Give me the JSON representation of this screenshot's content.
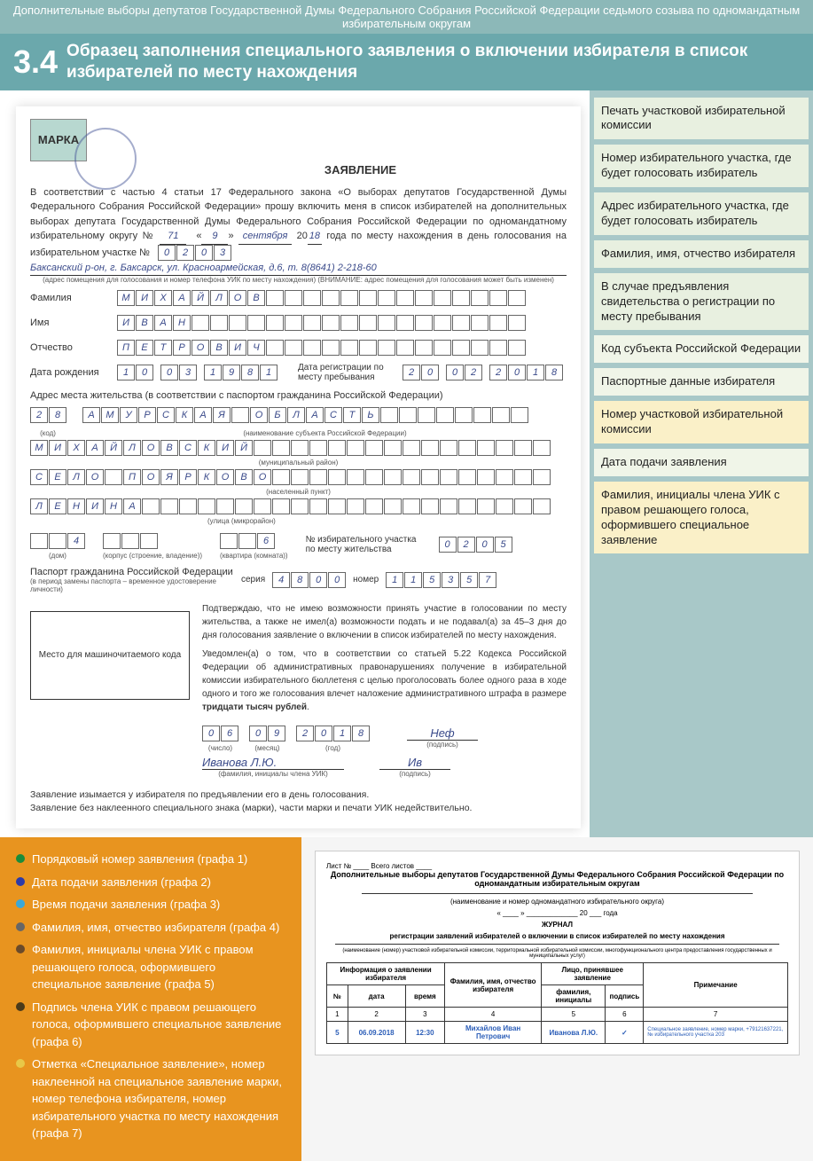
{
  "header": {
    "top": "Дополнительные выборы депутатов Государственной Думы Федерального Собрания Российской Федерации седьмого созыва по одномандатным избирательным округам",
    "num": "3.4",
    "title": "Образец заполнения специального заявления о включении избирателя в список избирателей по месту нахождения"
  },
  "callouts": [
    "Печать участковой избирательной комиссии",
    "Номер избирательного участка, где будет голосовать избиратель",
    "Адрес избирательного участка, где будет голосовать избиратель",
    "Фамилия, имя, отчество избирателя",
    "В случае предъявления свидетельства о регистрации по месту пребывания",
    "Код субъекта Российской Федерации",
    "Паспортные данные избирателя",
    "Номер участковой избирательной комиссии",
    "Дата подачи заявления",
    "Фамилия, инициалы члена УИК с правом решающего голоса, оформившего специальное заявление"
  ],
  "calloutStyles": [
    "",
    "",
    "",
    "",
    "",
    "pale",
    "pale",
    "yellow",
    "pale",
    "yellow"
  ],
  "form": {
    "marka": "МАРКА",
    "title": "ЗАЯВЛЕНИЕ",
    "intro": "В соответствии с частью 4 статьи 17 Федерального закона «О выборах депутатов Государственной Думы Федерального Собрания Российской Федерации» прошу включить меня в список избирателей на дополнительных выборах депутата Государственной Думы Федерального Собрания Российской Федерации по одномандатному избирательному округу №",
    "okrug_no": "71",
    "date_day": "9",
    "date_month": "сентября",
    "date_year": "18",
    "intro2": "года по месту нахождения в день голосования на избирательном участке №",
    "uik_cells": [
      "0",
      "2",
      "0",
      "3"
    ],
    "address_line": "Баксанский р-он, г. Баксарск, ул. Красноармейская, д.6, т. 8(8641) 2-218-60",
    "address_note": "(адрес помещения для голосования и номер телефона УИК по месту нахождения) (ВНИМАНИЕ: адрес помещения для голосования может быть изменен)",
    "surname_label": "Фамилия",
    "surname": [
      "М",
      "И",
      "Х",
      "А",
      "Й",
      "Л",
      "О",
      "В"
    ],
    "name_label": "Имя",
    "name": [
      "И",
      "В",
      "А",
      "Н"
    ],
    "patr_label": "Отчество",
    "patr": [
      "П",
      "Е",
      "Т",
      "Р",
      "О",
      "В",
      "И",
      "Ч"
    ],
    "dob_label": "Дата рождения",
    "dob": [
      "1",
      "0",
      ".",
      "0",
      "3",
      ".",
      "1",
      "9",
      "8",
      "1"
    ],
    "reg_date_label": "Дата регистрации по месту пребывания",
    "reg_date": [
      "2",
      "0",
      ".",
      "0",
      "2",
      ".",
      "2",
      "0",
      "1",
      "8"
    ],
    "address_title": "Адрес места жительства (в соответствии с паспортом гражданина Российской Федерации)",
    "region_code": [
      "2",
      "8"
    ],
    "region_code_label": "(код)",
    "region_name": [
      "А",
      "М",
      "У",
      "Р",
      "С",
      "К",
      "А",
      "Я",
      "",
      "О",
      "Б",
      "Л",
      "А",
      "С",
      "Т",
      "Ь"
    ],
    "region_name_label": "(наименование субъекта Российской Федерации)",
    "district": [
      "М",
      "И",
      "Х",
      "А",
      "Й",
      "Л",
      "О",
      "В",
      "С",
      "К",
      "И",
      "Й"
    ],
    "district_label": "(муниципальный район)",
    "settlement": [
      "С",
      "Е",
      "Л",
      "О",
      "",
      "П",
      "О",
      "Я",
      "Р",
      "К",
      "О",
      "В",
      "О"
    ],
    "settlement_label": "(населенный пункт)",
    "street": [
      "Л",
      "Е",
      "Н",
      "И",
      "Н",
      "А"
    ],
    "street_label": "(улица (микрорайон)",
    "house": "4",
    "house_label": "(дом)",
    "korpus_label": "(корпус (строение, владение))",
    "apt": "6",
    "apt_label": "(квартира (комната))",
    "uik_home_label": "№ избирательного участка по месту жительства",
    "uik_home": [
      "0",
      "2",
      "0",
      "5"
    ],
    "passport_label": "Паспорт гражданина Российской Федерации",
    "passport_note": "(в период замены паспорта – временное удостоверение личности)",
    "series_label": "серия",
    "series": [
      "4",
      "8",
      "0",
      "0"
    ],
    "number_label": "номер",
    "number": [
      "1",
      "1",
      "5",
      "3",
      "5",
      "7"
    ],
    "confirm1": "Подтверждаю, что не имею возможности принять участие в голосовании по месту жительства, а также не имел(а) возможности подать и не подавал(а) за 45–3 дня до дня голосования заявление о включении в список избирателей по месту нахождения.",
    "confirm2": "Уведомлен(а) о том, что в соответствии со статьей 5.22 Кодекса Российской Федерации об административных правонарушениях получение в избирательной комиссии избирательного бюллетеня с целью проголосовать более одного раза в ходе одного и того же голосования влечет наложение административного штрафа в размере",
    "confirm2b": "тридцати тысяч рублей",
    "machine_code": "Место для машиночитаемого кода",
    "submit_d": [
      "0",
      "6"
    ],
    "submit_d_label": "(число)",
    "submit_m": [
      "0",
      "9"
    ],
    "submit_m_label": "(месяц)",
    "submit_y": [
      "2",
      "0",
      "1",
      "8"
    ],
    "submit_y_label": "(год)",
    "sig1": "Неф",
    "sig1_label": "(подпись)",
    "member": "Иванова   Л.Ю.",
    "member_label": "(фамилия, инициалы члена УИК)",
    "sig2_label": "(подпись)",
    "note1": "Заявление изымается у избирателя по предъявлении его в день голосования.",
    "note2": "Заявление без наклеенного специального знака (марки), части марки и печати УИК недействительно."
  },
  "legend": {
    "items": [
      {
        "color": "#1a8c3a",
        "text": "Порядковый номер заявления (графа 1)"
      },
      {
        "color": "#2c3aa8",
        "text": "Дата подачи заявления (графа 2)"
      },
      {
        "color": "#3aa8d8",
        "text": "Время подачи заявления (графа 3)"
      },
      {
        "color": "#666",
        "text": "Фамилия, имя, отчество избирателя (графа 4)"
      },
      {
        "color": "#6a4a2a",
        "text": "Фамилия, инициалы члена УИК с правом решающего голоса, оформившего специальное заявление (графа 5)"
      },
      {
        "color": "#4a3a1a",
        "text": "Подпись члена УИК с правом решающего голоса, оформившего специальное заявление (графа 6)"
      },
      {
        "color": "#e8c848",
        "text": "Отметка «Специальное заявление», номер наклеенной на специальное заявление марки, номер телефона избирателя, номер избирательного участка по месту нахождения (графа 7)"
      }
    ]
  },
  "journal": {
    "sheet": "Лист № ____ Всего листов ____",
    "title": "Дополнительные выборы депутатов Государственной Думы Федерального Собрания Российской Федерации по одномандатным избирательным округам",
    "sub1": "(наименование и номер одномандатного избирательного округа)",
    "date_line": "« ____ » _____________ 20 ___ года",
    "journal_word": "ЖУРНАЛ",
    "subtitle": "регистрации заявлений избирателей о включении в список избирателей по месту нахождения",
    "sub2": "(наименование (номер) участковой избирательной комиссии, территориальной избирательной комиссии, многофункционального центра предоставления государственных и муниципальных услуг)",
    "headers": {
      "grp1": "Информация о заявлении избирателя",
      "no": "№",
      "date": "дата",
      "time": "время",
      "fio": "Фамилия, имя, отчество избирателя",
      "grp2": "Лицо, принявшее заявление",
      "fam": "фамилия, инициалы",
      "sig": "подпись",
      "note": "Примечание"
    },
    "nums": [
      "1",
      "2",
      "3",
      "4",
      "5",
      "6",
      "7"
    ],
    "row": {
      "no": "5",
      "date": "06.09.2018",
      "time": "12:30",
      "fio": "Михайлов Иван Петрович",
      "fam": "Иванова Л.Ю.",
      "sig": "✓",
      "note": "Специальное заявление, номер марки, +79121637221, № избирательного участка 203"
    }
  }
}
